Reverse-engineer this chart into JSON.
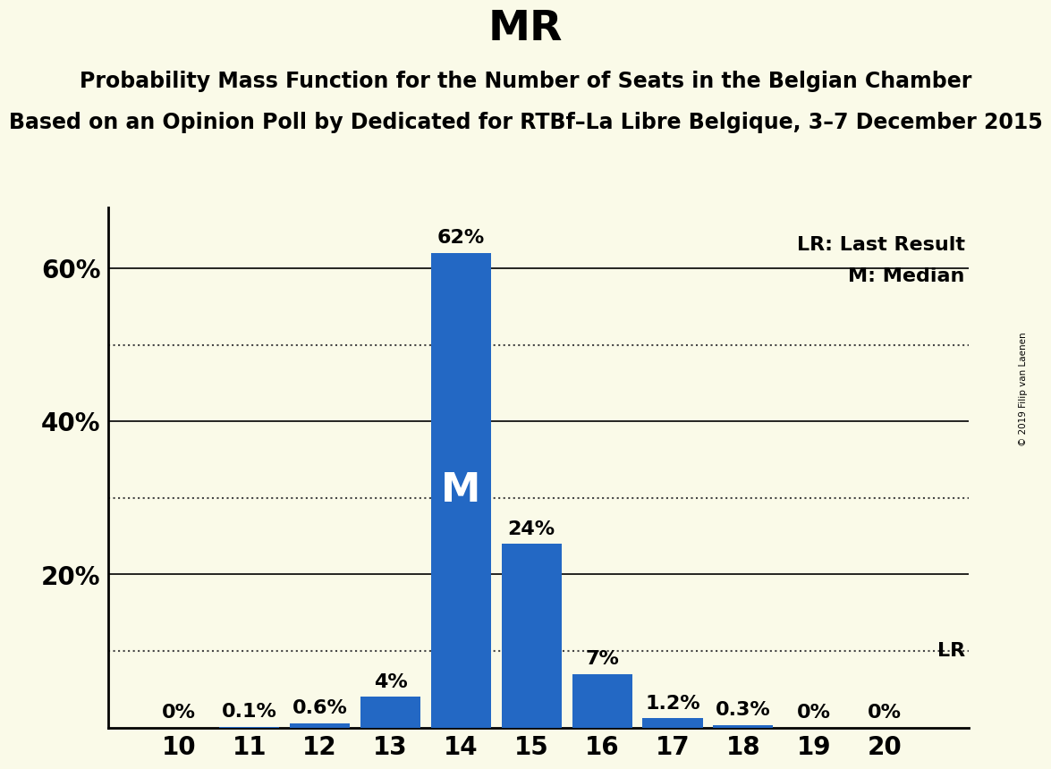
{
  "title": "MR",
  "subtitle1": "Probability Mass Function for the Number of Seats in the Belgian Chamber",
  "subtitle2": "Based on an Opinion Poll by Dedicated for RTBf–La Libre Belgique, 3–7 December 2015",
  "watermark": "© 2019 Filip van Laenen",
  "legend_lr": "LR: Last Result",
  "legend_m": "M: Median",
  "seats": [
    10,
    11,
    12,
    13,
    14,
    15,
    16,
    17,
    18,
    19,
    20
  ],
  "values": [
    0.0,
    0.1,
    0.6,
    4.0,
    62.0,
    24.0,
    7.0,
    1.2,
    0.3,
    0.0,
    0.0
  ],
  "labels": [
    "0%",
    "0.1%",
    "0.6%",
    "4%",
    "62%",
    "24%",
    "7%",
    "1.2%",
    "0.3%",
    "0%",
    "0%"
  ],
  "bar_color": "#2368c4",
  "median_seat": 14,
  "lr_seat": 20,
  "background_color": "#fafae8",
  "title_fontsize": 34,
  "subtitle_fontsize": 17,
  "label_fontsize": 16,
  "tick_fontsize": 20,
  "solid_lines": [
    20,
    40,
    60
  ],
  "dotted_lines": [
    10,
    30,
    50
  ],
  "ylim_max": 68,
  "xlim_min": 9.0,
  "xlim_max": 21.2
}
